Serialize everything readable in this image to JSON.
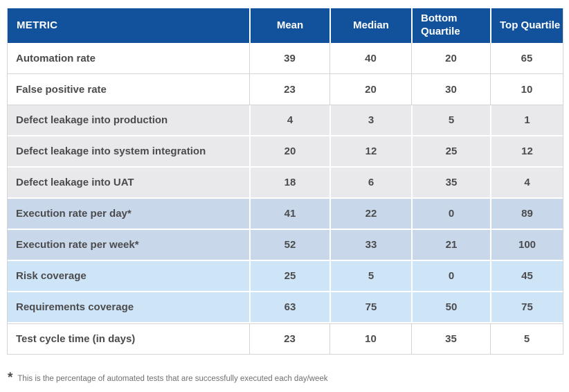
{
  "colors": {
    "header_bg": "#12519c",
    "header_text": "#ffffff",
    "body_text": "#4b4b4d",
    "gray_row_bg": "#e9e9eb",
    "bluegray_row_bg": "#c8d7e9",
    "lightblue_row_bg": "#cee4f7",
    "white_row_bg": "#ffffff",
    "border": "#d4d4d6"
  },
  "chart_data": {
    "type": "table",
    "columns": [
      "METRIC",
      "Mean",
      "Median",
      "Bottom Quartile",
      "Top Quartile"
    ],
    "rows": [
      {
        "label": "Automation rate",
        "values": [
          39,
          40,
          20,
          65
        ],
        "tone": "white"
      },
      {
        "label": "False positive rate",
        "values": [
          23,
          20,
          30,
          10
        ],
        "tone": "white"
      },
      {
        "label": "Defect leakage into production",
        "values": [
          4,
          3,
          5,
          1
        ],
        "tone": "gray"
      },
      {
        "label": "Defect leakage into system integration",
        "values": [
          20,
          12,
          25,
          12
        ],
        "tone": "gray"
      },
      {
        "label": "Defect leakage into UAT",
        "values": [
          18,
          6,
          35,
          4
        ],
        "tone": "gray"
      },
      {
        "label": "Execution rate per day*",
        "values": [
          41,
          22,
          0,
          89
        ],
        "tone": "bluegray"
      },
      {
        "label": "Execution rate per week*",
        "values": [
          52,
          33,
          21,
          100
        ],
        "tone": "bluegray"
      },
      {
        "label": "Risk coverage",
        "values": [
          25,
          5,
          0,
          45
        ],
        "tone": "lightblue"
      },
      {
        "label": "Requirements coverage",
        "values": [
          63,
          75,
          50,
          75
        ],
        "tone": "lightblue"
      },
      {
        "label": "Test cycle time (in days)",
        "values": [
          23,
          10,
          35,
          5
        ],
        "tone": "white"
      }
    ],
    "footnote_marker": "*",
    "footnote_text": "This is the percentage of automated tests that are successfully executed each day/week"
  }
}
